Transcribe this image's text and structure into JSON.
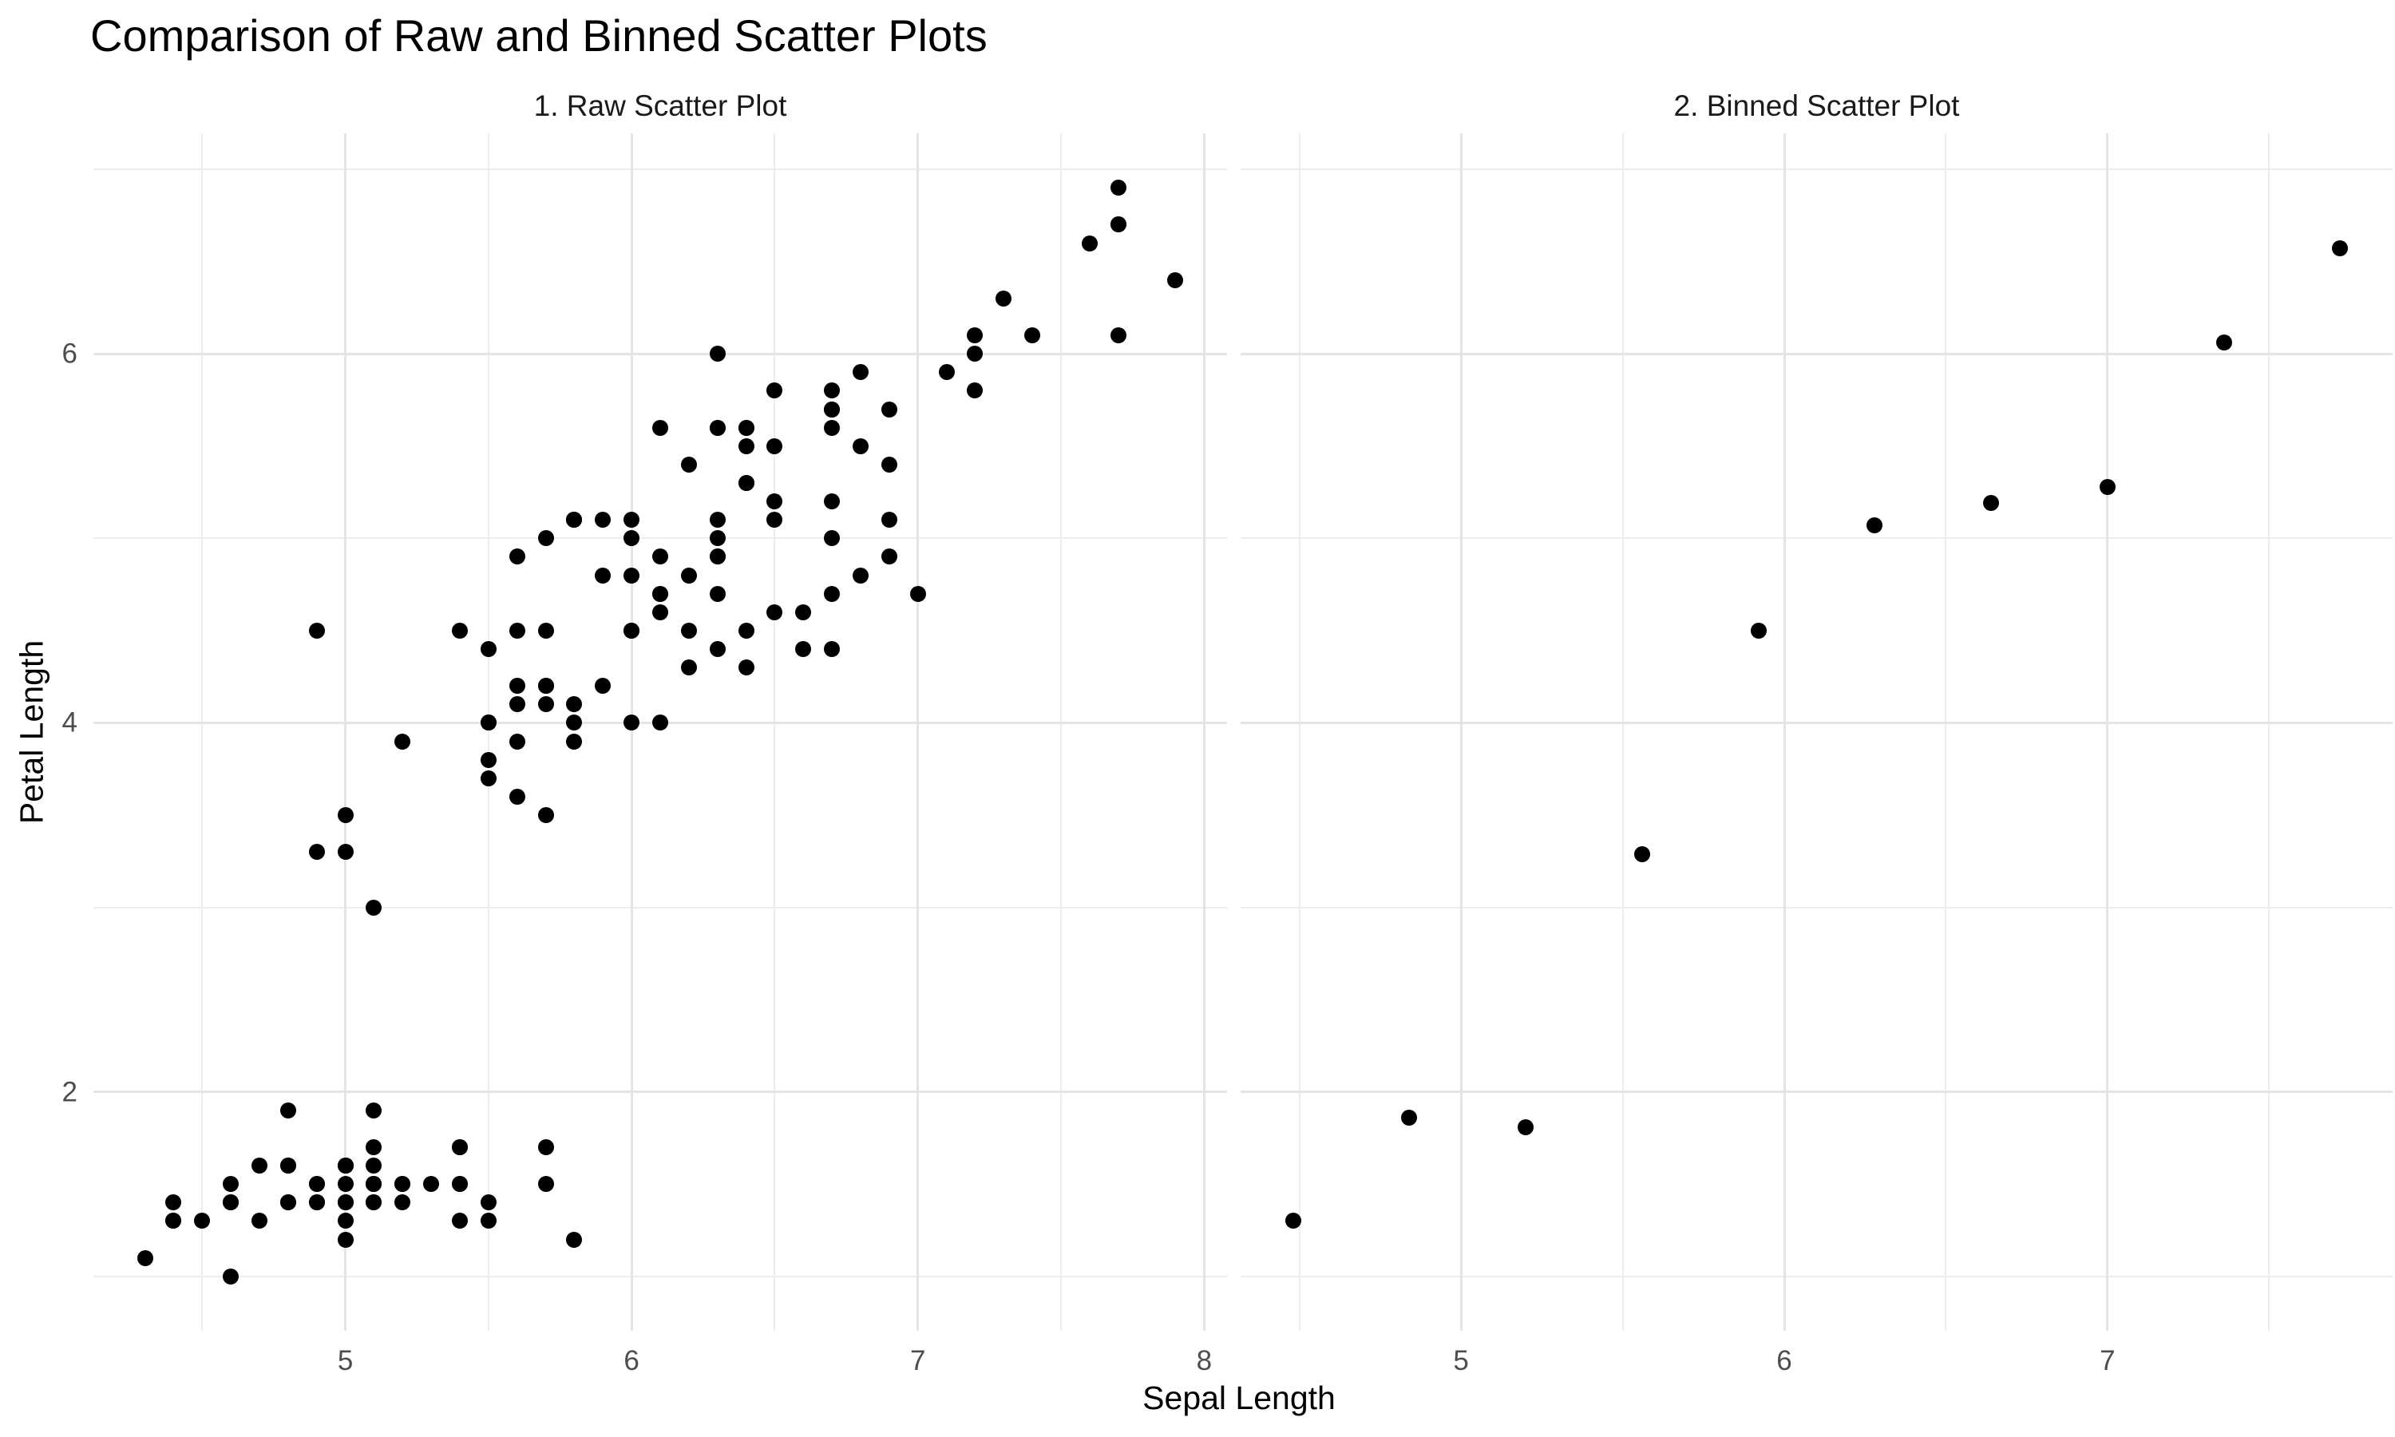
{
  "chart_data": {
    "type": "scatter",
    "title": "Comparison of Raw and Binned Scatter Plots",
    "xlabel": "Sepal Length",
    "ylabel": "Petal Length",
    "ylim": [
      0.705,
      7.195
    ],
    "y_ticks": [
      6,
      4,
      2
    ],
    "y_minor_ticks": [
      7,
      5,
      3,
      1
    ],
    "grid": true,
    "legend": false,
    "panels": [
      {
        "label": "1. Raw Scatter Plot",
        "xlim": [
          4.12,
          8.08
        ],
        "x_ticks": [
          5,
          6,
          7,
          8
        ],
        "x_minor_ticks": [
          4.5,
          5.5,
          6.5,
          7.5
        ],
        "points": [
          [
            5.1,
            1.4
          ],
          [
            4.9,
            1.4
          ],
          [
            4.7,
            1.3
          ],
          [
            4.6,
            1.5
          ],
          [
            5.0,
            1.4
          ],
          [
            5.4,
            1.7
          ],
          [
            4.6,
            1.4
          ],
          [
            5.0,
            1.5
          ],
          [
            4.4,
            1.4
          ],
          [
            4.9,
            1.5
          ],
          [
            5.4,
            1.5
          ],
          [
            4.8,
            1.6
          ],
          [
            4.8,
            1.4
          ],
          [
            4.3,
            1.1
          ],
          [
            5.8,
            1.2
          ],
          [
            5.7,
            1.5
          ],
          [
            5.4,
            1.3
          ],
          [
            5.1,
            1.4
          ],
          [
            5.7,
            1.7
          ],
          [
            5.1,
            1.5
          ],
          [
            5.4,
            1.7
          ],
          [
            5.1,
            1.5
          ],
          [
            4.6,
            1.0
          ],
          [
            5.1,
            1.7
          ],
          [
            4.8,
            1.9
          ],
          [
            5.0,
            1.6
          ],
          [
            5.0,
            1.6
          ],
          [
            5.2,
            1.5
          ],
          [
            5.2,
            1.4
          ],
          [
            4.7,
            1.6
          ],
          [
            4.8,
            1.6
          ],
          [
            5.4,
            1.5
          ],
          [
            5.2,
            1.5
          ],
          [
            5.5,
            1.4
          ],
          [
            4.9,
            1.5
          ],
          [
            5.0,
            1.2
          ],
          [
            5.5,
            1.3
          ],
          [
            4.9,
            1.4
          ],
          [
            4.4,
            1.3
          ],
          [
            5.1,
            1.5
          ],
          [
            5.0,
            1.3
          ],
          [
            4.5,
            1.3
          ],
          [
            4.4,
            1.3
          ],
          [
            5.0,
            1.6
          ],
          [
            5.1,
            1.9
          ],
          [
            4.8,
            1.4
          ],
          [
            5.1,
            1.6
          ],
          [
            4.6,
            1.4
          ],
          [
            5.3,
            1.5
          ],
          [
            5.0,
            1.4
          ],
          [
            7.0,
            4.7
          ],
          [
            6.4,
            4.5
          ],
          [
            6.9,
            4.9
          ],
          [
            5.5,
            4.0
          ],
          [
            6.5,
            4.6
          ],
          [
            5.7,
            4.5
          ],
          [
            6.3,
            4.7
          ],
          [
            4.9,
            3.3
          ],
          [
            6.6,
            4.6
          ],
          [
            5.2,
            3.9
          ],
          [
            5.0,
            3.5
          ],
          [
            5.9,
            4.2
          ],
          [
            6.0,
            4.0
          ],
          [
            6.1,
            4.7
          ],
          [
            5.6,
            3.6
          ],
          [
            6.7,
            4.4
          ],
          [
            5.6,
            4.5
          ],
          [
            5.8,
            4.1
          ],
          [
            6.2,
            4.5
          ],
          [
            5.6,
            3.9
          ],
          [
            5.9,
            4.8
          ],
          [
            6.1,
            4.0
          ],
          [
            6.3,
            4.9
          ],
          [
            6.1,
            4.7
          ],
          [
            6.4,
            4.3
          ],
          [
            6.6,
            4.4
          ],
          [
            6.8,
            4.8
          ],
          [
            6.7,
            5.0
          ],
          [
            6.0,
            4.5
          ],
          [
            5.7,
            3.5
          ],
          [
            5.5,
            3.8
          ],
          [
            5.5,
            3.7
          ],
          [
            5.8,
            3.9
          ],
          [
            6.0,
            5.1
          ],
          [
            5.4,
            4.5
          ],
          [
            6.0,
            4.5
          ],
          [
            6.7,
            4.7
          ],
          [
            6.3,
            4.4
          ],
          [
            5.6,
            4.1
          ],
          [
            5.5,
            4.0
          ],
          [
            5.5,
            4.4
          ],
          [
            6.1,
            4.6
          ],
          [
            5.8,
            4.0
          ],
          [
            5.0,
            3.3
          ],
          [
            5.6,
            4.2
          ],
          [
            5.7,
            4.2
          ],
          [
            5.7,
            4.2
          ],
          [
            6.2,
            4.3
          ],
          [
            5.1,
            3.0
          ],
          [
            5.7,
            4.1
          ],
          [
            6.3,
            6.0
          ],
          [
            5.8,
            5.1
          ],
          [
            7.1,
            5.9
          ],
          [
            6.3,
            5.6
          ],
          [
            6.5,
            5.8
          ],
          [
            7.6,
            6.6
          ],
          [
            4.9,
            4.5
          ],
          [
            7.3,
            6.3
          ],
          [
            6.7,
            5.8
          ],
          [
            7.2,
            6.1
          ],
          [
            6.5,
            5.1
          ],
          [
            6.4,
            5.3
          ],
          [
            6.8,
            5.5
          ],
          [
            5.7,
            5.0
          ],
          [
            5.8,
            5.1
          ],
          [
            6.4,
            5.3
          ],
          [
            6.5,
            5.5
          ],
          [
            7.7,
            6.7
          ],
          [
            7.7,
            6.9
          ],
          [
            6.0,
            5.0
          ],
          [
            6.9,
            5.7
          ],
          [
            5.6,
            4.9
          ],
          [
            7.7,
            6.7
          ],
          [
            6.3,
            4.9
          ],
          [
            6.7,
            5.7
          ],
          [
            7.2,
            6.0
          ],
          [
            6.2,
            4.8
          ],
          [
            6.1,
            4.9
          ],
          [
            6.4,
            5.6
          ],
          [
            7.2,
            5.8
          ],
          [
            7.4,
            6.1
          ],
          [
            7.9,
            6.4
          ],
          [
            6.4,
            5.6
          ],
          [
            6.3,
            5.1
          ],
          [
            6.1,
            5.6
          ],
          [
            7.7,
            6.1
          ],
          [
            6.3,
            5.6
          ],
          [
            6.4,
            5.5
          ],
          [
            6.0,
            4.8
          ],
          [
            6.9,
            5.4
          ],
          [
            6.7,
            5.6
          ],
          [
            6.9,
            5.1
          ],
          [
            5.8,
            5.1
          ],
          [
            6.8,
            5.9
          ],
          [
            6.7,
            5.7
          ],
          [
            6.7,
            5.2
          ],
          [
            6.3,
            5.0
          ],
          [
            6.5,
            5.2
          ],
          [
            6.2,
            5.4
          ],
          [
            5.9,
            5.1
          ]
        ]
      },
      {
        "label": "2. Binned Scatter Plot",
        "xlim": [
          4.318,
          7.882
        ],
        "x_ticks": [
          5,
          6,
          7
        ],
        "x_minor_ticks": [
          4.5,
          5.5,
          6.5,
          7.5
        ],
        "points": [
          [
            4.48,
            1.3
          ],
          [
            4.84,
            1.86
          ],
          [
            5.2,
            1.81
          ],
          [
            5.56,
            3.29
          ],
          [
            5.92,
            4.5
          ],
          [
            6.28,
            5.07
          ],
          [
            6.64,
            5.19
          ],
          [
            7.0,
            5.28
          ],
          [
            7.36,
            6.06
          ],
          [
            7.72,
            6.57
          ]
        ]
      }
    ],
    "colors": {
      "point": "#000000",
      "grid_major": "#E4E4E4",
      "grid_minor": "#EDEDED",
      "tick_label": "#4D4D4D",
      "text": "#000000",
      "background": "#FFFFFF"
    }
  }
}
